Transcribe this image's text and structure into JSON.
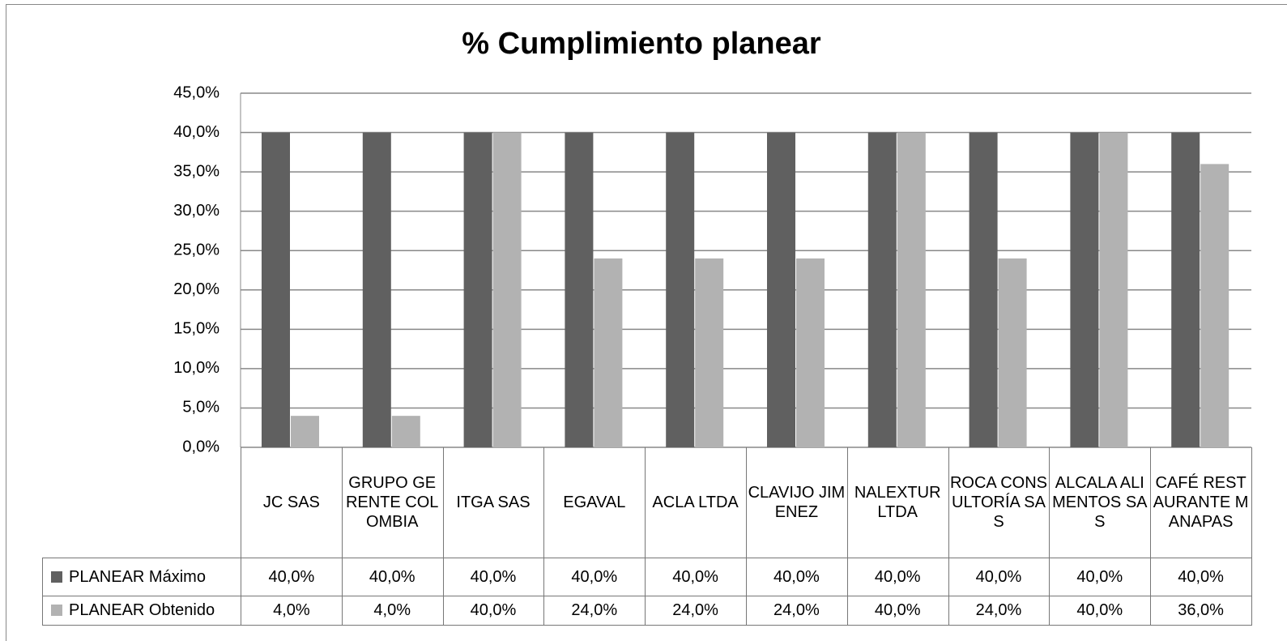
{
  "chart_data": {
    "type": "bar",
    "title": "% Cumplimiento planear",
    "categories": [
      "JC SAS",
      "GRUPO GERENTE COLOMBIA",
      "ITGA SAS",
      "EGAVAL",
      "ACLA LTDA",
      "CLAVIJO JIMENEZ",
      "NALEXTUR LTDA",
      "ROCA CONSULTORÍA SAS",
      "ALCALA ALIMENTOS SAS",
      "CAFÉ RESTAURANTE MANAPAS"
    ],
    "series": [
      {
        "name": "PLANEAR Máximo",
        "color": "#606060",
        "values": [
          40,
          40,
          40,
          40,
          40,
          40,
          40,
          40,
          40,
          40
        ],
        "value_labels": [
          "40,0%",
          "40,0%",
          "40,0%",
          "40,0%",
          "40,0%",
          "40,0%",
          "40,0%",
          "40,0%",
          "40,0%",
          "40,0%"
        ]
      },
      {
        "name": "PLANEAR Obtenido",
        "color": "#b2b2b2",
        "values": [
          4,
          4,
          40,
          24,
          24,
          24,
          40,
          24,
          40,
          36
        ],
        "value_labels": [
          "4,0%",
          "4,0%",
          "40,0%",
          "24,0%",
          "24,0%",
          "24,0%",
          "40,0%",
          "24,0%",
          "40,0%",
          "36,0%"
        ]
      }
    ],
    "ylim": [
      0,
      45
    ],
    "yticks": [
      {
        "value": 0,
        "label": "0,0%"
      },
      {
        "value": 5,
        "label": "5,0%"
      },
      {
        "value": 10,
        "label": "10,0%"
      },
      {
        "value": 15,
        "label": "15,0%"
      },
      {
        "value": 20,
        "label": "20,0%"
      },
      {
        "value": 25,
        "label": "25,0%"
      },
      {
        "value": 30,
        "label": "30,0%"
      },
      {
        "value": 35,
        "label": "35,0%"
      },
      {
        "value": 40,
        "label": "40,0%"
      },
      {
        "value": 45,
        "label": "45,0%"
      }
    ],
    "grid": true
  }
}
